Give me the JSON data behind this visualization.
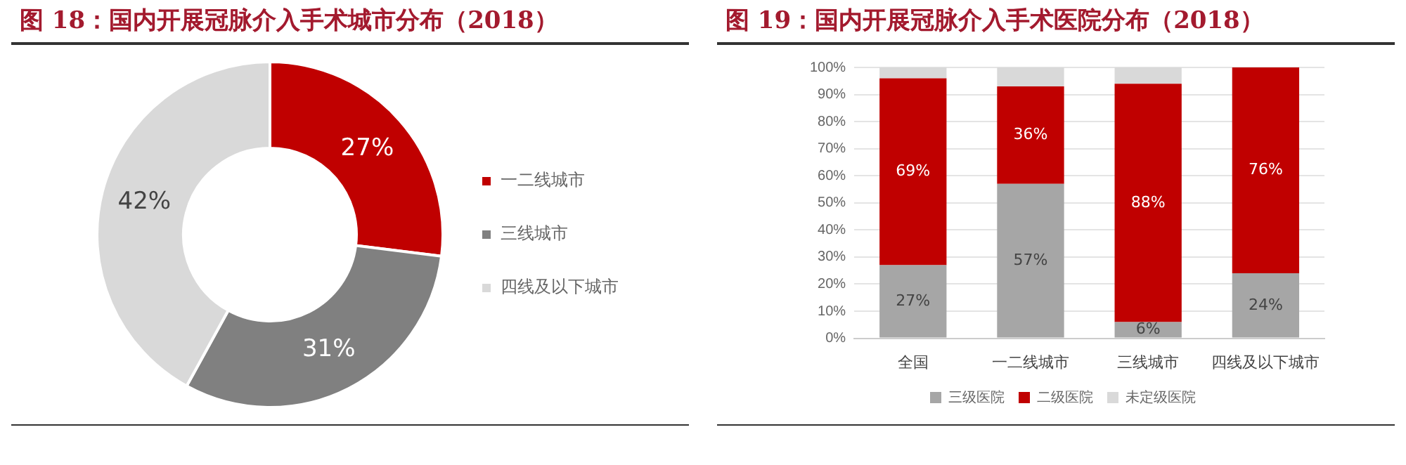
{
  "chart_data": [
    {
      "type": "donut",
      "title": "图 18：国内开展冠脉介入手术城市分布（2018）",
      "categories": [
        "一二线城市",
        "三线城市",
        "四线及以下城市"
      ],
      "values": [
        27,
        31,
        42
      ],
      "colors": [
        "#c00000",
        "#808080",
        "#d9d9d9"
      ],
      "value_labels": [
        "27%",
        "31%",
        "42%"
      ],
      "legend": "right"
    },
    {
      "type": "bar",
      "title": "图 19：国内开展冠脉介入手术医院分布（2018）",
      "categories": [
        "全国",
        "一二线城市",
        "三线城市",
        "四线及以下城市"
      ],
      "stacked": true,
      "series": [
        {
          "name": "三级医院",
          "color": "#a6a6a6",
          "values": [
            27,
            57,
            6,
            24
          ],
          "value_labels": [
            "27%",
            "57%",
            "6%",
            "24%"
          ]
        },
        {
          "name": "二级医院",
          "color": "#c00000",
          "values": [
            69,
            36,
            88,
            76
          ],
          "value_labels": [
            "69%",
            "36%",
            "88%",
            "76%"
          ]
        },
        {
          "name": "未定级医院",
          "color": "#d9d9d9",
          "values": [
            4,
            7,
            6,
            0
          ],
          "value_labels": [
            null,
            null,
            null,
            null
          ]
        }
      ],
      "ylim": [
        0,
        100
      ],
      "yticks": [
        {
          "value": 0,
          "label": "0%"
        },
        {
          "value": 10,
          "label": "10%"
        },
        {
          "value": 20,
          "label": "20%"
        },
        {
          "value": 30,
          "label": "30%"
        },
        {
          "value": 40,
          "label": "40%"
        },
        {
          "value": 50,
          "label": "50%"
        },
        {
          "value": 60,
          "label": "60%"
        },
        {
          "value": 70,
          "label": "70%"
        },
        {
          "value": 80,
          "label": "80%"
        },
        {
          "value": 90,
          "label": "90%"
        },
        {
          "value": 100,
          "label": "100%"
        }
      ],
      "grid": "y",
      "legend": "bottom"
    }
  ]
}
